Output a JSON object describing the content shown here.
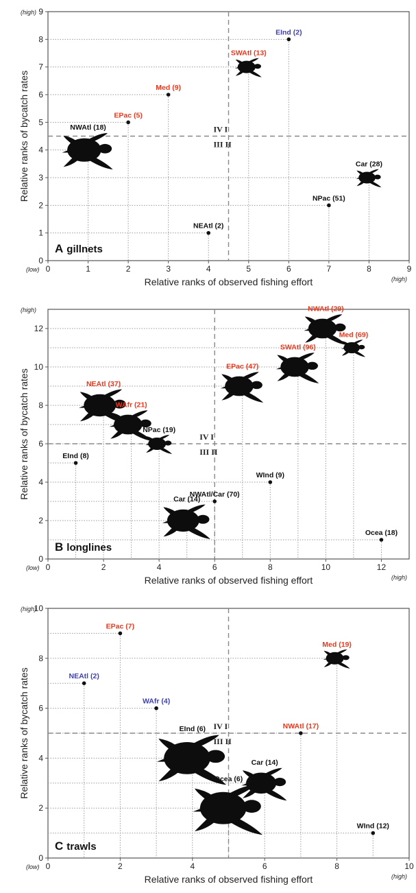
{
  "colors": {
    "black": "#111111",
    "red": "#e8391e",
    "blue": "#3f3fb0"
  },
  "chart_data": [
    {
      "type": "scatter",
      "panel_letter": "A",
      "panel_name": "gillnets",
      "xlabel": "Relative ranks of observed fishing effort",
      "ylabel": "Relative ranks of bycatch rates",
      "xlim": [
        0,
        9
      ],
      "ylim": [
        0,
        9
      ],
      "xticks": [
        "0",
        "1",
        "2",
        "3",
        "4",
        "5",
        "6",
        "7",
        "8",
        "9"
      ],
      "yticks": [
        "0",
        "1",
        "2",
        "3",
        "4",
        "5",
        "6",
        "7",
        "8",
        "9"
      ],
      "low_label": "(low)",
      "high_label": "(high)",
      "divider_x": 4.5,
      "divider_y": 4.5,
      "quadrants": {
        "I": "I",
        "II": "II",
        "III": "III",
        "IV": "IV"
      },
      "grid": "dotted drop-lines",
      "points": [
        {
          "label": "EInd (2)",
          "x": 6,
          "y": 8,
          "color": "blue",
          "marker": "dot"
        },
        {
          "label": "SWAtl (13)",
          "x": 5,
          "y": 7,
          "color": "red",
          "marker": "turtle",
          "size": 1
        },
        {
          "label": "Med (9)",
          "x": 3,
          "y": 6,
          "color": "red",
          "marker": "dot"
        },
        {
          "label": "EPac (5)",
          "x": 2,
          "y": 5,
          "color": "red",
          "marker": "dot"
        },
        {
          "label": "NWAtl (18)",
          "x": 1,
          "y": 4,
          "color": "black",
          "marker": "turtle",
          "size": 1.9
        },
        {
          "label": "Car (28)",
          "x": 8,
          "y": 3,
          "color": "black",
          "marker": "turtle",
          "size": 0.95
        },
        {
          "label": "NPac (51)",
          "x": 7,
          "y": 2,
          "color": "black",
          "marker": "dot"
        },
        {
          "label": "NEAtl (2)",
          "x": 4,
          "y": 1,
          "color": "black",
          "marker": "dot"
        }
      ]
    },
    {
      "type": "scatter",
      "panel_letter": "B",
      "panel_name": "longlines",
      "xlabel": "Relative ranks of observed fishing effort",
      "ylabel": "Relative ranks of bycatch rates",
      "xlim": [
        0,
        13
      ],
      "ylim": [
        0,
        13
      ],
      "xticks": [
        "0",
        "2",
        "4",
        "6",
        "8",
        "10",
        "12"
      ],
      "yticks": [
        "0",
        "2",
        "4",
        "6",
        "8",
        "10",
        "12"
      ],
      "low_label": "(low)",
      "high_label": "(high)",
      "divider_x": 6,
      "divider_y": 6,
      "quadrants": {
        "I": "I",
        "II": "II",
        "III": "III",
        "IV": "IV"
      },
      "grid": "dotted drop-lines",
      "points": [
        {
          "label": "NWAtl (29)",
          "x": 10,
          "y": 12,
          "color": "red",
          "marker": "turtle",
          "size": 1.6
        },
        {
          "label": "Med (69)",
          "x": 11,
          "y": 11,
          "color": "red",
          "marker": "turtle",
          "size": 0.9
        },
        {
          "label": "SWAtl (96)",
          "x": 9,
          "y": 10,
          "color": "red",
          "marker": "turtle",
          "size": 1.6
        },
        {
          "label": "EPac (47)",
          "x": 7,
          "y": 9,
          "color": "red",
          "marker": "turtle",
          "size": 1.6
        },
        {
          "label": "NEAtl (37)",
          "x": 2,
          "y": 8,
          "color": "red",
          "marker": "turtle",
          "size": 1.8
        },
        {
          "label": "WAfr (21)",
          "x": 3,
          "y": 7,
          "color": "red",
          "marker": "turtle",
          "size": 1.6
        },
        {
          "label": "NPac (19)",
          "x": 4,
          "y": 6,
          "color": "black",
          "marker": "turtle",
          "size": 1
        },
        {
          "label": "EInd (8)",
          "x": 1,
          "y": 5,
          "color": "black",
          "marker": "dot"
        },
        {
          "label": "WInd (9)",
          "x": 8,
          "y": 4,
          "color": "black",
          "marker": "dot"
        },
        {
          "label": "NWAtl/Car (70)",
          "x": 6,
          "y": 3,
          "color": "black",
          "marker": "dot"
        },
        {
          "label": "Car (14)",
          "x": 5,
          "y": 2,
          "color": "black",
          "marker": "turtle",
          "size": 1.8
        },
        {
          "label": "Ocea (18)",
          "x": 12,
          "y": 1,
          "color": "black",
          "marker": "dot"
        }
      ]
    },
    {
      "type": "scatter",
      "panel_letter": "C",
      "panel_name": "trawls",
      "xlabel": "Relative ranks of observed fishing effort",
      "ylabel": "Relative ranks of bycatch rates",
      "xlim": [
        0,
        10
      ],
      "ylim": [
        0,
        10
      ],
      "xticks": [
        "0",
        "2",
        "4",
        "6",
        "8",
        "10"
      ],
      "yticks": [
        "0",
        "2",
        "4",
        "6",
        "8",
        "10"
      ],
      "low_label": "(low)",
      "high_label": "(high)",
      "divider_x": 5,
      "divider_y": 5,
      "quadrants": {
        "I": "I",
        "II": "II",
        "III": "III",
        "IV": "IV"
      },
      "grid": "dotted drop-lines",
      "points": [
        {
          "label": "EPac (7)",
          "x": 2,
          "y": 9,
          "color": "red",
          "marker": "dot"
        },
        {
          "label": "Med (19)",
          "x": 8,
          "y": 8,
          "color": "red",
          "marker": "turtle",
          "size": 1
        },
        {
          "label": "NEAtl (2)",
          "x": 1,
          "y": 7,
          "color": "blue",
          "marker": "dot"
        },
        {
          "label": "WAfr (4)",
          "x": 3,
          "y": 6,
          "color": "blue",
          "marker": "dot"
        },
        {
          "label": "NWAtl (17)",
          "x": 7,
          "y": 5,
          "color": "red",
          "marker": "dot"
        },
        {
          "label": "EInd (6)",
          "x": 4,
          "y": 4,
          "color": "black",
          "marker": "turtle",
          "size": 2.6
        },
        {
          "label": "Car (14)",
          "x": 6,
          "y": 3,
          "color": "black",
          "marker": "turtle",
          "size": 1.7
        },
        {
          "label": "Ocea (6)",
          "x": 5,
          "y": 2,
          "color": "black",
          "marker": "turtle",
          "size": 2.6
        },
        {
          "label": "WInd (12)",
          "x": 9,
          "y": 1,
          "color": "black",
          "marker": "dot"
        }
      ]
    }
  ]
}
